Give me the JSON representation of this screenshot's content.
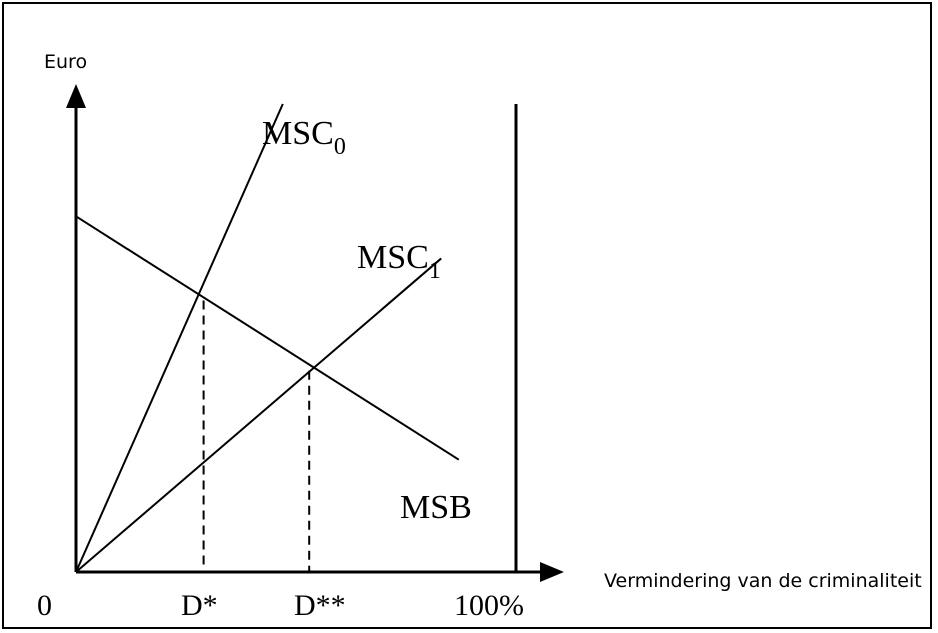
{
  "chart_data": {
    "type": "line",
    "ylabel": "Euro",
    "xlabel": "Vermindering van de criminaliteit",
    "x_ticks": [
      {
        "label": "0",
        "x": 0
      },
      {
        "label": "D*",
        "x": 29
      },
      {
        "label": "D**",
        "x": 53
      },
      {
        "label": "100%",
        "x": 100
      }
    ],
    "xlim": [
      0,
      100
    ],
    "ylim": [
      0,
      100
    ],
    "grid": false,
    "series": [
      {
        "name": "MSC",
        "subscript": "0",
        "x": [
          0,
          47
        ],
        "y": [
          0,
          100
        ]
      },
      {
        "name": "MSC",
        "subscript": "1",
        "x": [
          0,
          83
        ],
        "y": [
          0,
          67
        ]
      },
      {
        "name": "MSB",
        "x": [
          0,
          87
        ],
        "y": [
          76,
          24
        ]
      }
    ],
    "intersections": [
      {
        "x": 29,
        "y": 58
      },
      {
        "x": 53,
        "y": 43
      }
    ],
    "colors": {
      "line": "#000000",
      "background": "#ffffff"
    }
  }
}
